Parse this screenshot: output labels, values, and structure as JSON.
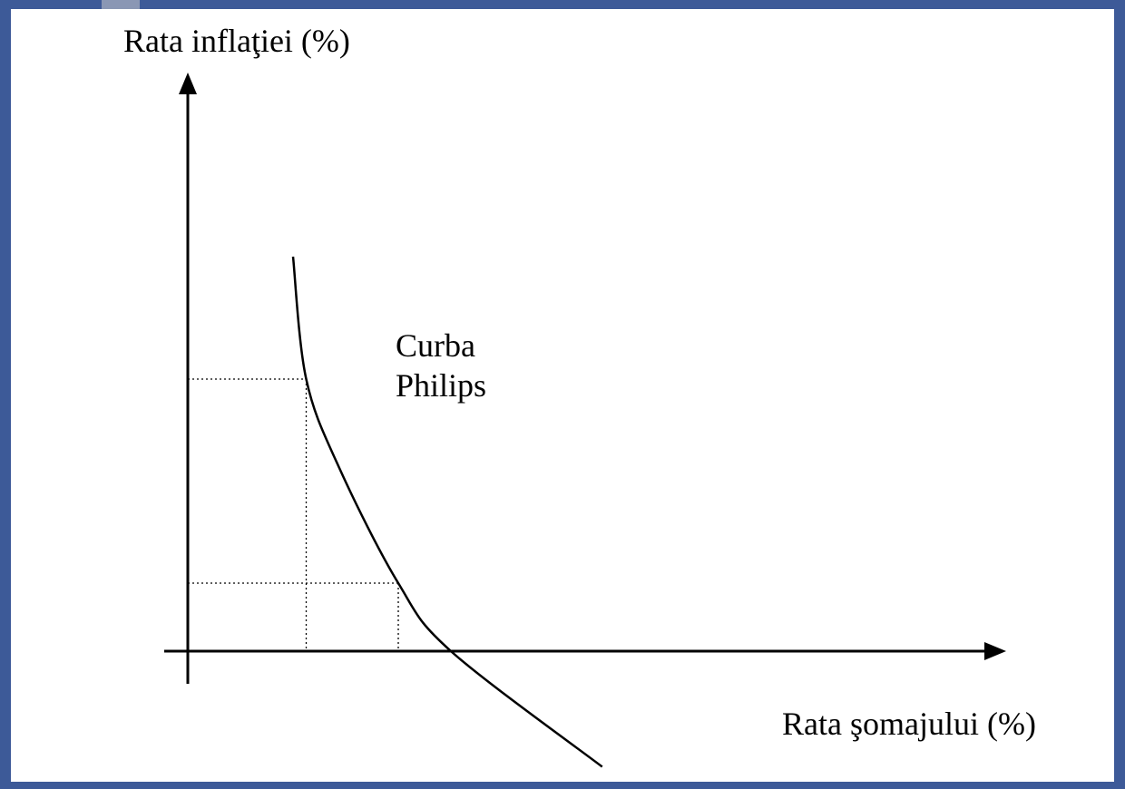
{
  "colors": {
    "border": "#3d5a98",
    "background": "#ffffff",
    "ink": "#000000"
  },
  "chart_data": {
    "type": "line",
    "title": "",
    "ylabel": "Rata inflaţiei (%)",
    "xlabel": "Rata şomajului (%)",
    "curve_label_lines": [
      "Curba",
      "Philips"
    ],
    "axes_arrows": true,
    "tick_labels": false,
    "grid": false,
    "series": [
      {
        "name": "Curba Philips",
        "shape": "downward-sloping convex curve crossing the horizontal axis",
        "points": [
          {
            "x": 1.6,
            "y": 5.8
          },
          {
            "x": 1.8,
            "y": 4.0
          },
          {
            "x": 2.3,
            "y": 2.7
          },
          {
            "x": 3.2,
            "y": 1.0
          },
          {
            "x": 4.0,
            "y": 0.0
          },
          {
            "x": 6.3,
            "y": -1.7
          }
        ]
      }
    ],
    "reference_lines": [
      {
        "x": 1.8,
        "y": 4.0,
        "style": "dotted"
      },
      {
        "x": 3.2,
        "y": 1.0,
        "style": "dotted"
      }
    ]
  }
}
